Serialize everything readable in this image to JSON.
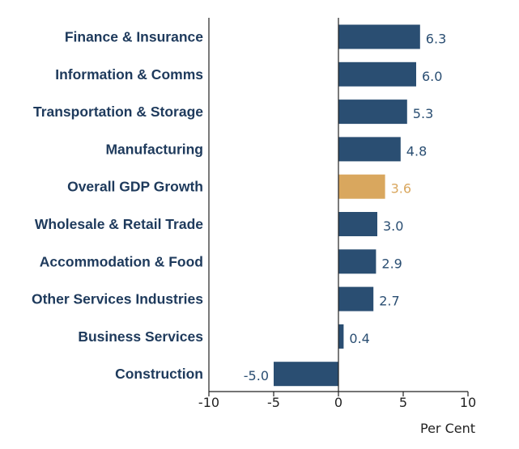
{
  "chart_data": {
    "type": "bar",
    "orientation": "horizontal",
    "categories": [
      "Finance & Insurance",
      "Information & Comms",
      "Transportation & Storage",
      "Manufacturing",
      "Overall GDP Growth",
      "Wholesale & Retail Trade",
      "Accommodation & Food",
      "Other Services Industries",
      "Business Services",
      "Construction"
    ],
    "values": [
      6.3,
      6.0,
      5.3,
      4.8,
      3.6,
      3.0,
      2.9,
      2.7,
      0.4,
      -5.0
    ],
    "value_labels": [
      "6.3",
      "6.0",
      "5.3",
      "4.8",
      "3.6",
      "3.0",
      "2.9",
      "2.7",
      "0.4",
      "-5.0"
    ],
    "highlight_index": 4,
    "xlabel": "Per Cent",
    "xlim": [
      -10,
      10
    ],
    "x_ticks": [
      -10,
      -5,
      0,
      5,
      10
    ],
    "x_tick_labels": [
      "-10",
      "-5",
      "0",
      "5",
      "10"
    ],
    "grid": false,
    "colors": {
      "bar": "#2a4e72",
      "highlight": "#d9a75e",
      "label_text": "#1e3a5c",
      "value_text": "#2a4e72",
      "highlight_text": "#d9a75e",
      "axis": "#222222"
    }
  }
}
